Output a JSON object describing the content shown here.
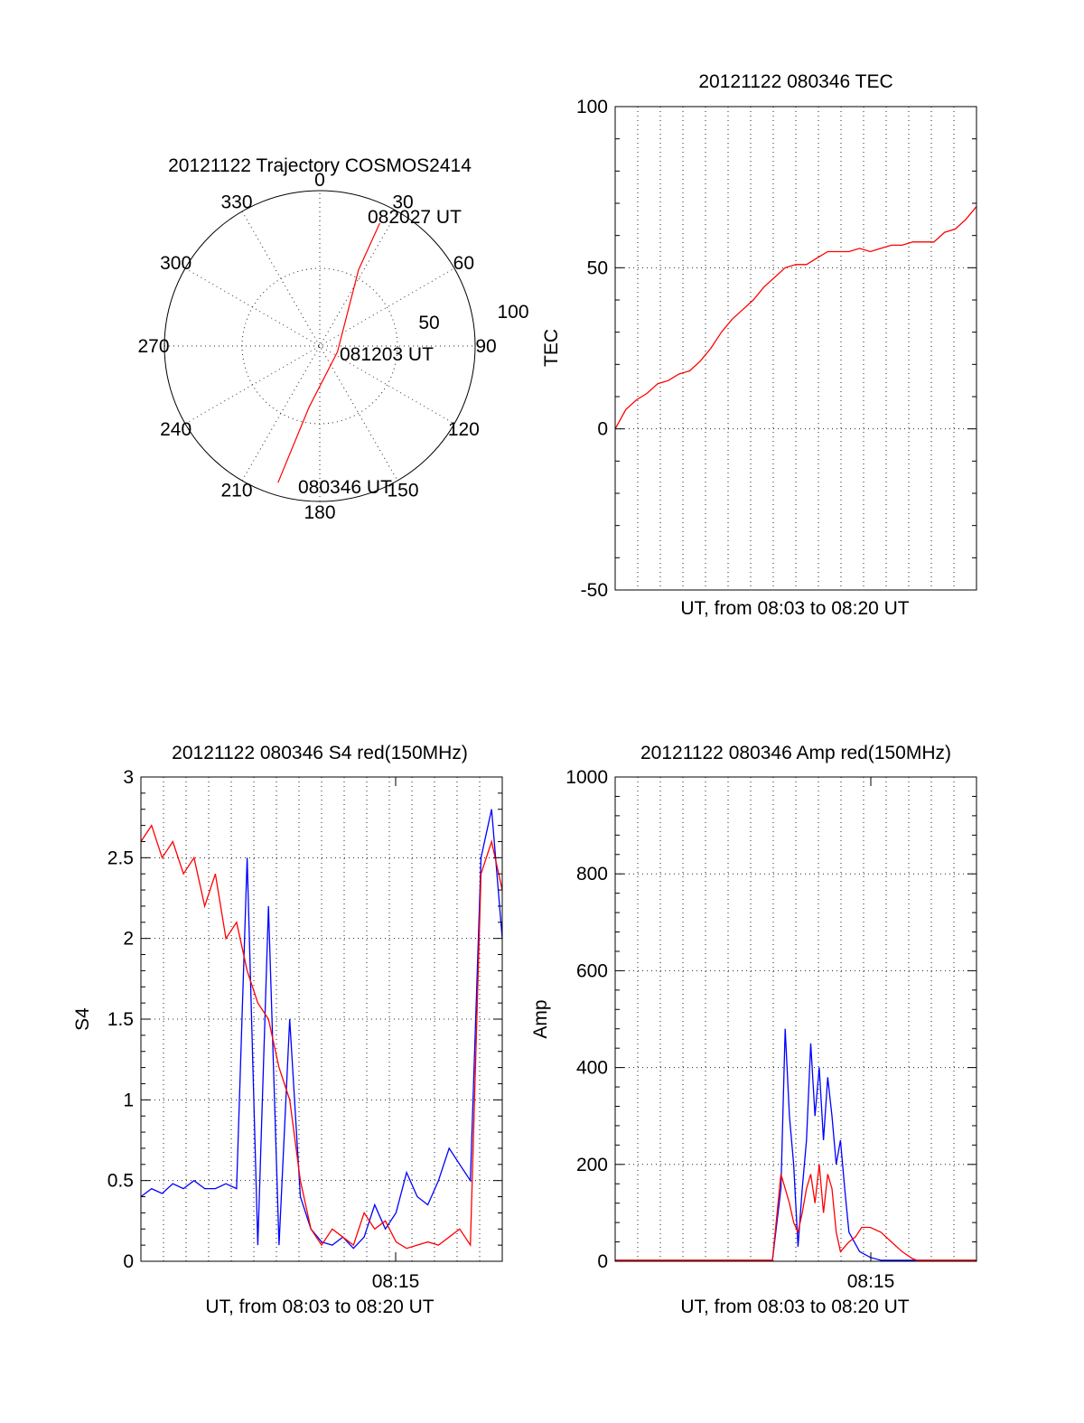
{
  "colors": {
    "red": "#ff0000",
    "blue": "#0000ff",
    "axis": "#000000"
  },
  "chart_data": [
    {
      "type": "polar",
      "title": "20121122 Trajectory COSMOS2414",
      "angle_labels": [
        "0",
        "30",
        "60",
        "90",
        "120",
        "150",
        "180",
        "210",
        "240",
        "270",
        "300",
        "330"
      ],
      "radius_labels": [
        "50",
        "100"
      ],
      "rlim": [
        0,
        100
      ],
      "series": [
        {
          "color": "#ff0000",
          "points": [
            {
              "az": 197,
              "r": 92
            },
            {
              "az": 190,
              "r": 40
            },
            {
              "az": 108,
              "r": 12
            },
            {
              "az": 27,
              "r": 55
            },
            {
              "az": 26,
              "r": 88
            }
          ]
        }
      ],
      "annotations": [
        "082027 UT",
        "081203 UT",
        "080346 UT"
      ]
    },
    {
      "type": "line",
      "title": "20121122 080346 TEC",
      "xlabel": "UT, from 08:03 to 08:20 UT",
      "ylabel": "TEC",
      "yticks": [
        "100",
        "50",
        "0",
        "-50"
      ],
      "ylim": [
        -50,
        100
      ],
      "xlim": [
        0,
        17
      ],
      "grid": true,
      "series": [
        {
          "color": "#ff0000",
          "x": [
            0,
            0.5,
            1,
            1.5,
            2,
            2.5,
            3,
            3.5,
            4,
            4.5,
            5,
            5.5,
            6,
            6.5,
            7,
            7.5,
            8,
            8.5,
            9,
            9.5,
            10,
            10.5,
            11,
            11.5,
            12,
            12.5,
            13,
            13.5,
            14,
            14.5,
            15,
            15.5,
            16,
            16.5,
            17
          ],
          "y": [
            0,
            6,
            9,
            11,
            14,
            15,
            17,
            18,
            21,
            25,
            30,
            34,
            37,
            40,
            44,
            47,
            50,
            51,
            51,
            53,
            55,
            55,
            55,
            56,
            55,
            56,
            57,
            57,
            58,
            58,
            58,
            61,
            62,
            65,
            69
          ]
        }
      ]
    },
    {
      "type": "line",
      "title": "20121122 080346 S4 red(150MHz)",
      "xlabel": "UT, from 08:03 to 08:20 UT",
      "ylabel": "S4",
      "xtick_label": "08:15",
      "yticks": [
        "3",
        "2.5",
        "2",
        "1.5",
        "1",
        "0.5",
        "0"
      ],
      "ylim": [
        0,
        3
      ],
      "xlim": [
        0,
        17
      ],
      "grid": true,
      "series": [
        {
          "color": "#0000ff",
          "x": [
            0,
            0.5,
            1,
            1.5,
            2,
            2.5,
            3,
            3.5,
            4,
            4.5,
            5,
            5.5,
            6,
            6.5,
            7,
            7.5,
            8,
            8.5,
            9,
            9.5,
            10,
            10.5,
            11,
            11.5,
            12,
            12.5,
            13,
            13.5,
            14,
            14.5,
            15,
            15.5,
            16,
            16.5,
            17
          ],
          "y": [
            0.4,
            0.45,
            0.42,
            0.48,
            0.45,
            0.5,
            0.45,
            0.45,
            0.48,
            0.45,
            2.5,
            0.1,
            2.2,
            0.1,
            1.5,
            0.4,
            0.2,
            0.12,
            0.1,
            0.15,
            0.08,
            0.15,
            0.35,
            0.2,
            0.3,
            0.55,
            0.4,
            0.35,
            0.5,
            0.7,
            0.6,
            0.5,
            2.5,
            2.8,
            2.0
          ]
        },
        {
          "color": "#ff0000",
          "x": [
            0,
            0.5,
            1,
            1.5,
            2,
            2.5,
            3,
            3.5,
            4,
            4.5,
            5,
            5.5,
            6,
            6.5,
            7,
            7.5,
            8,
            8.5,
            9,
            9.5,
            10,
            10.5,
            11,
            11.5,
            12,
            12.5,
            13,
            13.5,
            14,
            14.5,
            15,
            15.5,
            16,
            16.5,
            17
          ],
          "y": [
            2.6,
            2.7,
            2.5,
            2.6,
            2.4,
            2.5,
            2.2,
            2.4,
            2.0,
            2.1,
            1.8,
            1.6,
            1.5,
            1.2,
            1.0,
            0.5,
            0.2,
            0.1,
            0.2,
            0.15,
            0.1,
            0.3,
            0.2,
            0.25,
            0.12,
            0.08,
            0.1,
            0.12,
            0.1,
            0.15,
            0.2,
            0.1,
            2.4,
            2.6,
            2.3
          ]
        }
      ]
    },
    {
      "type": "line",
      "title": "20121122 080346 Amp red(150MHz)",
      "xlabel": "UT, from 08:03 to 08:20 UT",
      "ylabel": "Amp",
      "xtick_label": "08:15",
      "yticks": [
        "1000",
        "800",
        "600",
        "400",
        "200",
        "0"
      ],
      "ylim": [
        0,
        1000
      ],
      "xlim": [
        0,
        17
      ],
      "grid": true,
      "series": [
        {
          "color": "#0000ff",
          "x": [
            0,
            7.4,
            7.8,
            8.0,
            8.2,
            8.4,
            8.6,
            8.8,
            9.0,
            9.2,
            9.4,
            9.6,
            9.8,
            10.0,
            10.2,
            10.4,
            10.6,
            10.8,
            11.0,
            11.5,
            12,
            12.5,
            17
          ],
          "y": [
            2,
            2,
            150,
            480,
            300,
            200,
            30,
            150,
            250,
            450,
            300,
            400,
            250,
            380,
            300,
            200,
            250,
            150,
            60,
            20,
            8,
            2,
            2
          ]
        },
        {
          "color": "#ff0000",
          "x": [
            0,
            7.4,
            7.8,
            8.0,
            8.2,
            8.4,
            8.6,
            8.8,
            9.0,
            9.2,
            9.4,
            9.6,
            9.8,
            10.0,
            10.2,
            10.4,
            10.6,
            10.8,
            11.0,
            11.3,
            11.6,
            12,
            12.5,
            13,
            13.5,
            14,
            14.2,
            17
          ],
          "y": [
            2,
            2,
            180,
            150,
            120,
            80,
            60,
            100,
            150,
            180,
            120,
            200,
            100,
            180,
            150,
            60,
            20,
            30,
            40,
            50,
            70,
            70,
            60,
            40,
            20,
            5,
            2,
            2
          ]
        }
      ]
    }
  ]
}
